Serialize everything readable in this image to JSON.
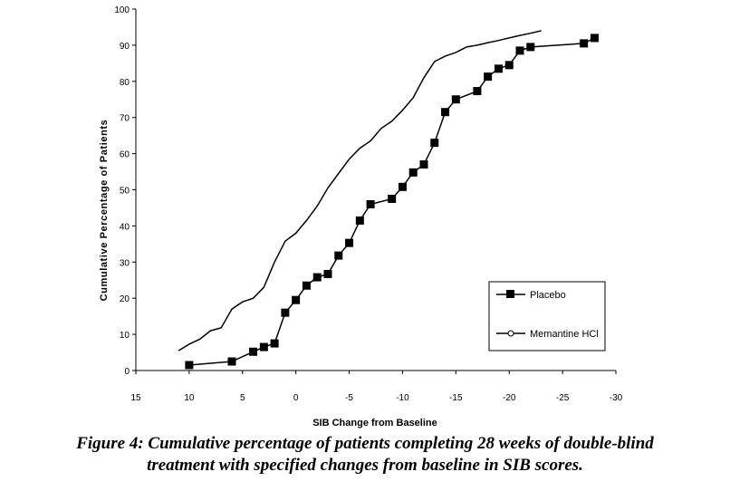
{
  "caption": {
    "line1": "Figure 4: Cumulative percentage of patients completing 28 weeks of double-blind",
    "line2": "treatment with specified changes from baseline in SIB scores."
  },
  "chart_data": {
    "type": "line",
    "xlabel": "SIB Change from Baseline",
    "ylabel": "Cumulative Percentage of Patients",
    "xlim": [
      15,
      -30
    ],
    "ylim": [
      0,
      100
    ],
    "x_reversed": true,
    "xticks": [
      15,
      10,
      5,
      0,
      -5,
      -10,
      -15,
      -20,
      -25,
      -30
    ],
    "yticks": [
      0,
      10,
      20,
      30,
      40,
      50,
      60,
      70,
      80,
      90,
      100
    ],
    "grid": false,
    "legend_position": "bottom-right",
    "series": [
      {
        "name": "Placebo",
        "marker": "square",
        "color": "#000000",
        "x": [
          10,
          6,
          4,
          3,
          2,
          1,
          0,
          -1,
          -2,
          -3,
          -4,
          -5,
          -6,
          -7,
          -9,
          -10,
          -11,
          -12,
          -13,
          -14,
          -15,
          -17,
          -18,
          -19,
          -20,
          -21,
          -22,
          -27,
          -28
        ],
        "y": [
          1.5,
          2.5,
          5.2,
          6.5,
          7.5,
          16,
          19.5,
          23.5,
          25.8,
          26.7,
          31.8,
          35.3,
          41.5,
          46,
          47.5,
          50.8,
          54.8,
          57,
          63,
          71.5,
          75,
          77.3,
          81.3,
          83.5,
          84.5,
          88.5,
          89.5,
          90.5,
          92
        ]
      },
      {
        "name": "Memantine HCl",
        "marker": "circle",
        "color": "#000000",
        "x": [
          11,
          10,
          9,
          8,
          7,
          6,
          5,
          4,
          3,
          2,
          1,
          0,
          -1,
          -2,
          -3,
          -4,
          -5,
          -6,
          -7,
          -8,
          -9,
          -10,
          -11,
          -12,
          -13,
          -14,
          -15,
          -16,
          -17,
          -18,
          -19,
          -20,
          -21,
          -22,
          -23
        ],
        "y": [
          5.5,
          7.3,
          8.7,
          11,
          11.8,
          17,
          19,
          20,
          23,
          30,
          35.8,
          38,
          41.5,
          45.5,
          50.5,
          54.5,
          58.5,
          61.5,
          63.5,
          67,
          69,
          72,
          75.5,
          81,
          85.5,
          87,
          88,
          89.5,
          90,
          90.7,
          91.3,
          92,
          92.7,
          93.3,
          94
        ]
      }
    ]
  }
}
